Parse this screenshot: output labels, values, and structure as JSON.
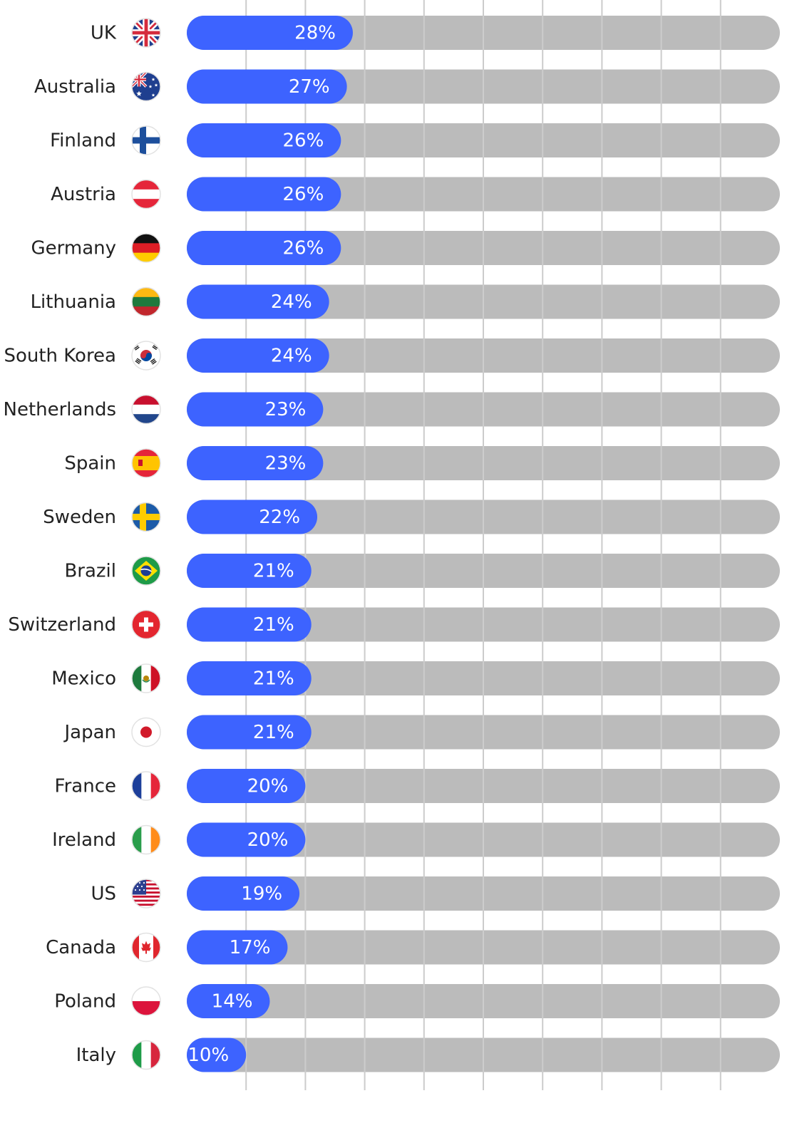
{
  "chart_data": {
    "type": "bar",
    "orientation": "horizontal",
    "title": "",
    "xlabel": "",
    "ylabel": "",
    "xlim": [
      0,
      100
    ],
    "grid": true,
    "value_suffix": "%",
    "colors": {
      "bar": "#3d63ff",
      "track": "#bbbbbb",
      "grid": "#cccccc",
      "label": "#222222",
      "value_text": "#ffffff"
    },
    "categories": [
      "UK",
      "Australia",
      "Finland",
      "Austria",
      "Germany",
      "Lithuania",
      "South Korea",
      "Netherlands",
      "Spain",
      "Sweden",
      "Brazil",
      "Switzerland",
      "Mexico",
      "Japan",
      "France",
      "Ireland",
      "US",
      "Canada",
      "Poland",
      "Italy"
    ],
    "values": [
      28,
      27,
      26,
      26,
      26,
      24,
      24,
      23,
      23,
      22,
      21,
      21,
      21,
      21,
      20,
      20,
      19,
      17,
      14,
      10
    ],
    "flags": [
      "uk-flag-icon",
      "australia-flag-icon",
      "finland-flag-icon",
      "austria-flag-icon",
      "germany-flag-icon",
      "lithuania-flag-icon",
      "south-korea-flag-icon",
      "netherlands-flag-icon",
      "spain-flag-icon",
      "sweden-flag-icon",
      "brazil-flag-icon",
      "switzerland-flag-icon",
      "mexico-flag-icon",
      "japan-flag-icon",
      "france-flag-icon",
      "ireland-flag-icon",
      "us-flag-icon",
      "canada-flag-icon",
      "poland-flag-icon",
      "italy-flag-icon"
    ]
  }
}
